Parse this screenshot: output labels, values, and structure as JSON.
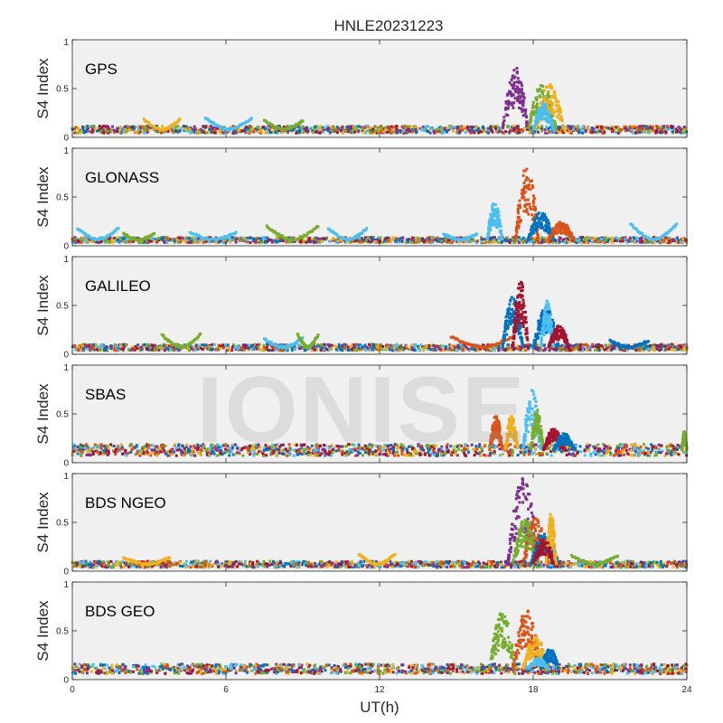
{
  "figure": {
    "title": "HNLE20231223",
    "xlabel": "UT(h)",
    "ylabel": "S4 Index",
    "watermark": "IONISE"
  },
  "colors": {
    "palette": [
      "#0072bd",
      "#d95319",
      "#edb120",
      "#7e2f8e",
      "#77ac30",
      "#4dbeee",
      "#a2142f"
    ],
    "axes_background": "#f0f0f0",
    "axis_color": "#262626"
  },
  "chart_data": [
    {
      "type": "scatter",
      "system": "GPS",
      "xlim": [
        0,
        24
      ],
      "ylim": [
        0,
        1
      ],
      "yticks": [
        0,
        0.5,
        1
      ],
      "ytick_labels": [
        "0",
        "0.5",
        "1"
      ],
      "grid": false,
      "baseline": 0.08,
      "events": [
        {
          "color": 3,
          "x": [
            16.8,
            17.8
          ],
          "peak": 0.72
        },
        {
          "color": 4,
          "x": [
            17.8,
            18.9
          ],
          "peak": 0.55
        },
        {
          "color": 2,
          "x": [
            18.1,
            19.2
          ],
          "peak": 0.55
        },
        {
          "color": 5,
          "x": [
            18.0,
            18.8
          ],
          "peak": 0.35
        }
      ],
      "arcs": [
        {
          "color": 2,
          "x": [
            2.8,
            4.2
          ],
          "peak": 0.18
        },
        {
          "color": 5,
          "x": [
            5.2,
            7.0
          ],
          "peak": 0.2
        },
        {
          "color": 4,
          "x": [
            7.5,
            9.0
          ],
          "peak": 0.17
        }
      ]
    },
    {
      "type": "scatter",
      "system": "GLONASS",
      "xlim": [
        0,
        24
      ],
      "ylim": [
        0,
        1
      ],
      "yticks": [
        0,
        0.5,
        1
      ],
      "ytick_labels": [
        "0",
        "0.5",
        "1"
      ],
      "grid": false,
      "baseline": 0.06,
      "events": [
        {
          "color": 1,
          "x": [
            17.3,
            18.2
          ],
          "peak": 0.82
        },
        {
          "color": 5,
          "x": [
            16.2,
            16.8
          ],
          "peak": 0.45
        },
        {
          "color": 0,
          "x": [
            17.8,
            18.8
          ],
          "peak": 0.35
        },
        {
          "color": 1,
          "x": [
            18.6,
            19.6
          ],
          "peak": 0.25
        }
      ],
      "arcs": [
        {
          "color": 5,
          "x": [
            0.2,
            1.8
          ],
          "peak": 0.18
        },
        {
          "color": 4,
          "x": [
            2.0,
            3.2
          ],
          "peak": 0.12
        },
        {
          "color": 5,
          "x": [
            4.6,
            6.4
          ],
          "peak": 0.14
        },
        {
          "color": 4,
          "x": [
            7.6,
            9.6
          ],
          "peak": 0.2
        },
        {
          "color": 5,
          "x": [
            10.0,
            11.5
          ],
          "peak": 0.18
        },
        {
          "color": 5,
          "x": [
            14.5,
            15.8
          ],
          "peak": 0.12
        },
        {
          "color": 5,
          "x": [
            21.8,
            23.6
          ],
          "peak": 0.22
        }
      ]
    },
    {
      "type": "scatter",
      "system": "GALILEO",
      "xlim": [
        0,
        24
      ],
      "ylim": [
        0,
        1
      ],
      "yticks": [
        0,
        0.5,
        1
      ],
      "ytick_labels": [
        "0",
        "0.5",
        "1"
      ],
      "grid": false,
      "baseline": 0.07,
      "events": [
        {
          "color": 0,
          "x": [
            16.8,
            17.6
          ],
          "peak": 0.62
        },
        {
          "color": 6,
          "x": [
            17.2,
            17.8
          ],
          "peak": 0.78
        },
        {
          "color": 0,
          "x": [
            18.0,
            19.0
          ],
          "peak": 0.5
        },
        {
          "color": 5,
          "x": [
            18.3,
            18.8
          ],
          "peak": 0.55
        },
        {
          "color": 6,
          "x": [
            18.6,
            19.4
          ],
          "peak": 0.3
        }
      ],
      "arcs": [
        {
          "color": 4,
          "x": [
            3.5,
            5.0
          ],
          "peak": 0.2
        },
        {
          "color": 5,
          "x": [
            7.5,
            9.0
          ],
          "peak": 0.16
        },
        {
          "color": 4,
          "x": [
            8.8,
            9.6
          ],
          "peak": 0.2
        },
        {
          "color": 1,
          "x": [
            14.8,
            17.2
          ],
          "peak": 0.18
        },
        {
          "color": 0,
          "x": [
            21.0,
            22.5
          ],
          "peak": 0.14
        }
      ]
    },
    {
      "type": "scatter",
      "system": "SBAS",
      "xlim": [
        0,
        24
      ],
      "ylim": [
        0,
        1
      ],
      "yticks": [
        0,
        0.5,
        1
      ],
      "ytick_labels": [
        "0",
        "0.5",
        "1"
      ],
      "grid": false,
      "baseline": 0.13,
      "events": [
        {
          "color": 1,
          "x": [
            16.3,
            16.8
          ],
          "peak": 0.5
        },
        {
          "color": 2,
          "x": [
            16.9,
            17.4
          ],
          "peak": 0.5
        },
        {
          "color": 5,
          "x": [
            17.6,
            18.3
          ],
          "peak": 0.75
        },
        {
          "color": 4,
          "x": [
            17.9,
            18.4
          ],
          "peak": 0.55
        },
        {
          "color": 6,
          "x": [
            18.4,
            19.2
          ],
          "peak": 0.35
        },
        {
          "color": 0,
          "x": [
            18.8,
            19.6
          ],
          "peak": 0.3
        },
        {
          "color": 4,
          "x": [
            23.8,
            24.0
          ],
          "peak": 0.32
        }
      ],
      "arcs": []
    },
    {
      "type": "scatter",
      "system": "BDS NGEO",
      "xlim": [
        0,
        24
      ],
      "ylim": [
        0,
        1
      ],
      "yticks": [
        0,
        0.5,
        1
      ],
      "ytick_labels": [
        "0",
        "0.5",
        "1"
      ],
      "grid": false,
      "baseline": 0.07,
      "events": [
        {
          "color": 3,
          "x": [
            17.0,
            18.2
          ],
          "peak": 0.97
        },
        {
          "color": 1,
          "x": [
            17.6,
            18.6
          ],
          "peak": 0.55
        },
        {
          "color": 4,
          "x": [
            17.2,
            18.2
          ],
          "peak": 0.55
        },
        {
          "color": 0,
          "x": [
            17.9,
            19.0
          ],
          "peak": 0.4
        },
        {
          "color": 2,
          "x": [
            18.5,
            18.9
          ],
          "peak": 0.6
        },
        {
          "color": 6,
          "x": [
            18.0,
            18.8
          ],
          "peak": 0.35
        }
      ],
      "arcs": [
        {
          "color": 2,
          "x": [
            2.0,
            3.8
          ],
          "peak": 0.14
        },
        {
          "color": 2,
          "x": [
            11.2,
            12.6
          ],
          "peak": 0.17
        },
        {
          "color": 4,
          "x": [
            19.5,
            21.3
          ],
          "peak": 0.16
        }
      ]
    },
    {
      "type": "scatter",
      "system": "BDS GEO",
      "xlim": [
        0,
        24
      ],
      "ylim": [
        0,
        1
      ],
      "xticks": [
        0,
        6,
        12,
        18,
        24
      ],
      "xtick_labels": [
        "0",
        "6",
        "12",
        "18",
        "24"
      ],
      "yticks": [
        0,
        0.5,
        1
      ],
      "ytick_labels": [
        "0",
        "0.5",
        "1"
      ],
      "grid": false,
      "baseline": 0.11,
      "events": [
        {
          "color": 4,
          "x": [
            16.3,
            17.3
          ],
          "peak": 0.7
        },
        {
          "color": 1,
          "x": [
            17.2,
            18.3
          ],
          "peak": 0.72
        },
        {
          "color": 2,
          "x": [
            17.6,
            18.6
          ],
          "peak": 0.45
        },
        {
          "color": 0,
          "x": [
            18.3,
            19.0
          ],
          "peak": 0.32
        },
        {
          "color": 5,
          "x": [
            17.8,
            18.6
          ],
          "peak": 0.22
        }
      ],
      "arcs": []
    }
  ]
}
